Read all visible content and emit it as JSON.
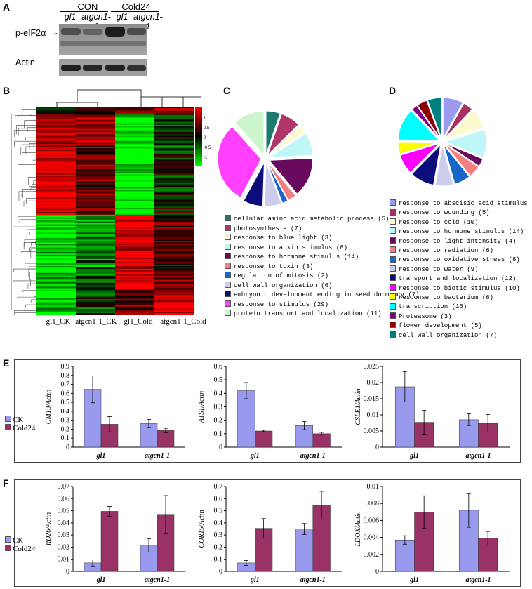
{
  "panel_letters": {
    "A": "A",
    "B": "B",
    "C": "C",
    "D": "D",
    "E": "E",
    "F": "F"
  },
  "blot": {
    "groups": [
      "CON",
      "Cold24"
    ],
    "lanes": [
      "gl1",
      "atgcn1-1",
      "gl1",
      "atgcn1-1"
    ],
    "rows": [
      "p-eIF2α",
      "Actin"
    ]
  },
  "heatmap": {
    "columns": [
      "gl1_CK",
      "atgcn1-1_CK",
      "gl1_Cold",
      "atgcn1-1_Cold"
    ],
    "scale_ticks": [
      "1",
      "0.5",
      "0",
      "-0.5",
      "-1"
    ],
    "colors": {
      "high": "#ff0000",
      "mid": "#000000",
      "low": "#00ff00"
    }
  },
  "pieC": {
    "items": [
      {
        "label": "cellular amino acid metabolic process (5)",
        "color": "#1b7b6e",
        "value": 5
      },
      {
        "label": "photosynthesis (7)",
        "color": "#b0356b",
        "value": 7
      },
      {
        "label": "response to blue light (3)",
        "color": "#fbfbcf",
        "value": 3
      },
      {
        "label": "response to auxin stimulus (8)",
        "color": "#bff6f7",
        "value": 8
      },
      {
        "label": "response to hormone stimulus (14)",
        "color": "#6a0a5e",
        "value": 14
      },
      {
        "label": "response to toxin (3)",
        "color": "#f28080",
        "value": 3
      },
      {
        "label": "regulation of mitosis (2)",
        "color": "#1a66c8",
        "value": 2
      },
      {
        "label": "cell wall organization (6)",
        "color": "#cccced",
        "value": 6
      },
      {
        "label": "embryonic development ending in seed dormancy (7)",
        "color": "#0c0c7a",
        "value": 7
      },
      {
        "label": "response to stimulus (29)",
        "color": "#ff40ff",
        "value": 29
      },
      {
        "label": "protein transport and localization (11)",
        "color": "#ccf5cc",
        "value": 11
      }
    ]
  },
  "pieD": {
    "items": [
      {
        "label": "response to abscisic acid stimulus (10)",
        "color": "#9b9bf0",
        "value": 10
      },
      {
        "label": "response to wounding (5)",
        "color": "#a83060",
        "value": 5
      },
      {
        "label": "response to cold (10)",
        "color": "#fbfbcf",
        "value": 10
      },
      {
        "label": "response to hormone stimulus (14)",
        "color": "#bff6f7",
        "value": 14
      },
      {
        "label": "response to light intensity (4)",
        "color": "#6a0a5e",
        "value": 4
      },
      {
        "label": "response to radiation (6)",
        "color": "#f28080",
        "value": 6
      },
      {
        "label": "response to oxidative stress (8)",
        "color": "#1a66c8",
        "value": 8
      },
      {
        "label": "response to water (9)",
        "color": "#cccced",
        "value": 9
      },
      {
        "label": "transport and localization (12)",
        "color": "#0c0c7a",
        "value": 12
      },
      {
        "label": "response to biotic stimulus (10)",
        "color": "#ff00ff",
        "value": 10
      },
      {
        "label": "response to bacterium (6)",
        "color": "#ffff00",
        "value": 6
      },
      {
        "label": "transcription (16)",
        "color": "#00ffff",
        "value": 16
      },
      {
        "label": "Proteasome (3)",
        "color": "#800080",
        "value": 3
      },
      {
        "label": "flower development (5)",
        "color": "#8b0000",
        "value": 5
      },
      {
        "label": "cell wall organization (7)",
        "color": "#008080",
        "value": 7
      }
    ]
  },
  "legendE": {
    "ck": "CK",
    "cold": "Cold24"
  },
  "legendF": {
    "ck": "CK",
    "cold": "Cold24"
  },
  "chart_data": [
    {
      "type": "bar",
      "panel": "E",
      "ylabel": "CMT3/Actin",
      "categories": [
        "gl1",
        "atgcn1-1"
      ],
      "ylim": [
        0,
        0.9
      ],
      "yticks": [
        "0",
        "0.1",
        "0.2",
        "0.3",
        "0.4",
        "0.5",
        "0.6",
        "0.7",
        "0.8",
        "0.9"
      ],
      "series": [
        {
          "name": "CK",
          "values": [
            0.645,
            0.265
          ],
          "errors": [
            0.15,
            0.045
          ]
        },
        {
          "name": "Cold24",
          "values": [
            0.255,
            0.185
          ],
          "errors": [
            0.085,
            0.025
          ]
        }
      ]
    },
    {
      "type": "bar",
      "panel": "E",
      "ylabel": "ATS1/Actin",
      "categories": [
        "gl1",
        "atgcn1-1"
      ],
      "ylim": [
        0,
        0.6
      ],
      "yticks": [
        "0",
        "0.1",
        "0.2",
        "0.3",
        "0.4",
        "0.5",
        "0.6"
      ],
      "series": [
        {
          "name": "CK",
          "values": [
            0.42,
            0.16
          ],
          "errors": [
            0.06,
            0.03
          ]
        },
        {
          "name": "Cold24",
          "values": [
            0.12,
            0.1
          ],
          "errors": [
            0.006,
            0.01
          ]
        }
      ]
    },
    {
      "type": "bar",
      "panel": "E",
      "ylabel": "CSLE1/Actin",
      "categories": [
        "gl1",
        "atgcn1-1"
      ],
      "ylim": [
        0,
        0.025
      ],
      "yticks": [
        "0",
        "0.005",
        "0.01",
        "0.015",
        "0.02",
        "0.025"
      ],
      "series": [
        {
          "name": "CK",
          "values": [
            0.0187,
            0.0085
          ],
          "errors": [
            0.0047,
            0.0018
          ]
        },
        {
          "name": "Cold24",
          "values": [
            0.0077,
            0.0074
          ],
          "errors": [
            0.0037,
            0.0027
          ]
        }
      ]
    },
    {
      "type": "bar",
      "panel": "F",
      "ylabel": "RD26/Actin",
      "categories": [
        "gl1",
        "atgcn1-1"
      ],
      "ylim": [
        0,
        0.07
      ],
      "yticks": [
        "0",
        "0.01",
        "0.02",
        "0.03",
        "0.04",
        "0.05",
        "0.06",
        "0.07"
      ],
      "series": [
        {
          "name": "CK",
          "values": [
            0.007,
            0.0215
          ],
          "errors": [
            0.0025,
            0.0055
          ]
        },
        {
          "name": "Cold24",
          "values": [
            0.0495,
            0.047
          ],
          "errors": [
            0.004,
            0.0155
          ]
        }
      ]
    },
    {
      "type": "bar",
      "panel": "F",
      "ylabel": "COR15/Actin",
      "categories": [
        "gl1",
        "atgcn1-1"
      ],
      "ylim": [
        0,
        0.7
      ],
      "yticks": [
        "0",
        "0.1",
        "0.2",
        "0.3",
        "0.4",
        "0.5",
        "0.6",
        "0.7"
      ],
      "series": [
        {
          "name": "CK",
          "values": [
            0.07,
            0.35
          ],
          "errors": [
            0.02,
            0.045
          ]
        },
        {
          "name": "Cold24",
          "values": [
            0.355,
            0.545
          ],
          "errors": [
            0.08,
            0.115
          ]
        }
      ]
    },
    {
      "type": "bar",
      "panel": "F",
      "ylabel": "LDOX/Actin",
      "categories": [
        "gl1",
        "atgcn1-1"
      ],
      "ylim": [
        0,
        0.01
      ],
      "yticks": [
        "0",
        "0.002",
        "0.004",
        "0.006",
        "0.008",
        "0.01"
      ],
      "series": [
        {
          "name": "CK",
          "values": [
            0.0037,
            0.0072
          ],
          "errors": [
            0.0005,
            0.002
          ]
        },
        {
          "name": "Cold24",
          "values": [
            0.007,
            0.0039
          ],
          "errors": [
            0.0019,
            0.0008
          ]
        }
      ]
    }
  ]
}
